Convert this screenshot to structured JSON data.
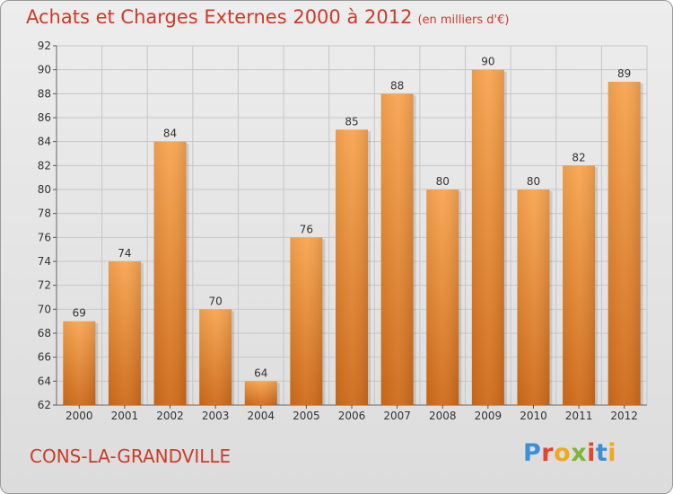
{
  "header": {
    "title": "Achats et Charges Externes 2000 à 2012",
    "subtitle": "(en milliers d'€)"
  },
  "footer": {
    "commune": "CONS-LA-GRANDVILLE",
    "logo": "Proxiti"
  },
  "colors": {
    "title": "#cc3b2a",
    "bar_light": "#f8a550",
    "bar_dark": "#cf6b1a",
    "grid": "#c6c6c6",
    "background": "#e6e6e6"
  },
  "chart_data": {
    "type": "bar",
    "title": "Achats et Charges Externes 2000 à 2012",
    "subtitle": "(en milliers d'€)",
    "categories": [
      "2000",
      "2001",
      "2002",
      "2003",
      "2004",
      "2005",
      "2006",
      "2007",
      "2008",
      "2009",
      "2010",
      "2011",
      "2012"
    ],
    "values": [
      69,
      74,
      84,
      70,
      64,
      76,
      85,
      88,
      80,
      90,
      80,
      82,
      89
    ],
    "ylim": [
      62,
      92
    ],
    "yticks": [
      62,
      64,
      66,
      68,
      70,
      72,
      74,
      76,
      78,
      80,
      82,
      84,
      86,
      88,
      90,
      92
    ],
    "grid": true,
    "legend": "none"
  }
}
